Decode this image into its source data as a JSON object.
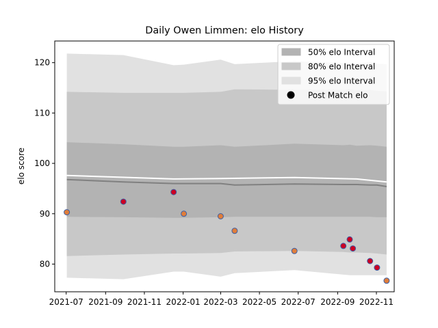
{
  "chart_data": {
    "type": "line",
    "title": "Daily Owen Limmen: elo History",
    "xlabel": "",
    "ylabel": "elo score",
    "xlim": [
      "2021-06-13",
      "2022-11-29"
    ],
    "ylim": [
      74.5,
      124.3
    ],
    "x_ticks": [
      "2021-07",
      "2021-09",
      "2021-11",
      "2022-01",
      "2022-03",
      "2022-05",
      "2022-07",
      "2022-09",
      "2022-11"
    ],
    "y_ticks": [
      80,
      90,
      100,
      110,
      120
    ],
    "grid": false,
    "legend_position": "top-right",
    "legend": [
      {
        "label": "50% elo Interval",
        "color": "#b3b3b3",
        "kind": "patch"
      },
      {
        "label": "80% elo Interval",
        "color": "#c8c8c8",
        "kind": "patch"
      },
      {
        "label": "95% elo Interval",
        "color": "#e1e1e1",
        "kind": "patch"
      },
      {
        "label": "Post Match elo",
        "color": "#000000",
        "kind": "marker"
      }
    ],
    "band_x": [
      "2021-07-02",
      "2021-09-29",
      "2021-12-17",
      "2022-01-02",
      "2022-03-01",
      "2022-03-23",
      "2022-06-25",
      "2022-09-10",
      "2022-09-20",
      "2022-10-01",
      "2022-10-22",
      "2022-11-02",
      "2022-11-17"
    ],
    "bands": {
      "p95_upper": [
        121.8,
        121.5,
        119.5,
        119.6,
        120.6,
        119.7,
        120.3,
        119.9,
        119.9,
        119.8,
        120.1,
        119.8,
        119.7
      ],
      "p80_upper": [
        114.2,
        114.0,
        114.0,
        114.0,
        114.2,
        114.7,
        114.6,
        114.6,
        114.7,
        114.5,
        114.6,
        114.4,
        114.3
      ],
      "p50_upper": [
        104.2,
        103.8,
        103.3,
        103.3,
        103.6,
        103.3,
        103.9,
        103.6,
        103.7,
        103.5,
        103.6,
        103.5,
        103.3
      ],
      "median": [
        96.8,
        96.3,
        96.0,
        96.0,
        96.0,
        95.7,
        95.9,
        95.8,
        95.8,
        95.8,
        95.7,
        95.7,
        95.4
      ],
      "p50_lower": [
        89.4,
        89.3,
        89.2,
        89.2,
        89.3,
        89.4,
        89.4,
        89.4,
        89.4,
        89.4,
        89.4,
        89.3,
        89.3
      ],
      "p80_lower": [
        81.6,
        81.9,
        82.1,
        82.1,
        82.2,
        82.5,
        82.6,
        82.4,
        82.3,
        82.3,
        82.2,
        82.1,
        81.9
      ],
      "p95_lower": [
        77.3,
        77.0,
        78.5,
        78.5,
        77.5,
        78.2,
        78.8,
        77.9,
        77.8,
        77.8,
        77.8,
        77.8,
        77.8
      ]
    },
    "mean_line": {
      "x": [
        "2021-07-02",
        "2021-12-17",
        "2022-03-01",
        "2022-06-25",
        "2022-10-01",
        "2022-11-17"
      ],
      "y": [
        97.6,
        96.9,
        97.0,
        97.2,
        96.9,
        96.3
      ]
    },
    "series": [
      {
        "name": "Post Match elo",
        "points": [
          {
            "x": "2021-07-02",
            "y": 90.3,
            "result": "loss"
          },
          {
            "x": "2021-09-29",
            "y": 92.4,
            "result": "win"
          },
          {
            "x": "2021-12-17",
            "y": 94.3,
            "result": "win"
          },
          {
            "x": "2022-01-02",
            "y": 90.0,
            "result": "loss"
          },
          {
            "x": "2022-03-01",
            "y": 89.5,
            "result": "loss"
          },
          {
            "x": "2022-03-23",
            "y": 86.6,
            "result": "loss"
          },
          {
            "x": "2022-06-25",
            "y": 82.6,
            "result": "loss"
          },
          {
            "x": "2022-09-10",
            "y": 83.6,
            "result": "win"
          },
          {
            "x": "2022-09-20",
            "y": 84.9,
            "result": "win"
          },
          {
            "x": "2022-09-25",
            "y": 83.1,
            "result": "win"
          },
          {
            "x": "2022-10-22",
            "y": 80.6,
            "result": "win"
          },
          {
            "x": "2022-11-02",
            "y": 79.3,
            "result": "win"
          },
          {
            "x": "2022-11-17",
            "y": 76.7,
            "result": "loss"
          }
        ]
      }
    ],
    "colors": {
      "band95": "#e1e1e1",
      "band80": "#c8c8c8",
      "band50": "#b3b3b3",
      "median_line": "#808080",
      "mean_line": "#ffffff",
      "marker_edge": "#3b5fa6",
      "marker_win": "#cc0022",
      "marker_loss": "#e07d3a"
    }
  }
}
